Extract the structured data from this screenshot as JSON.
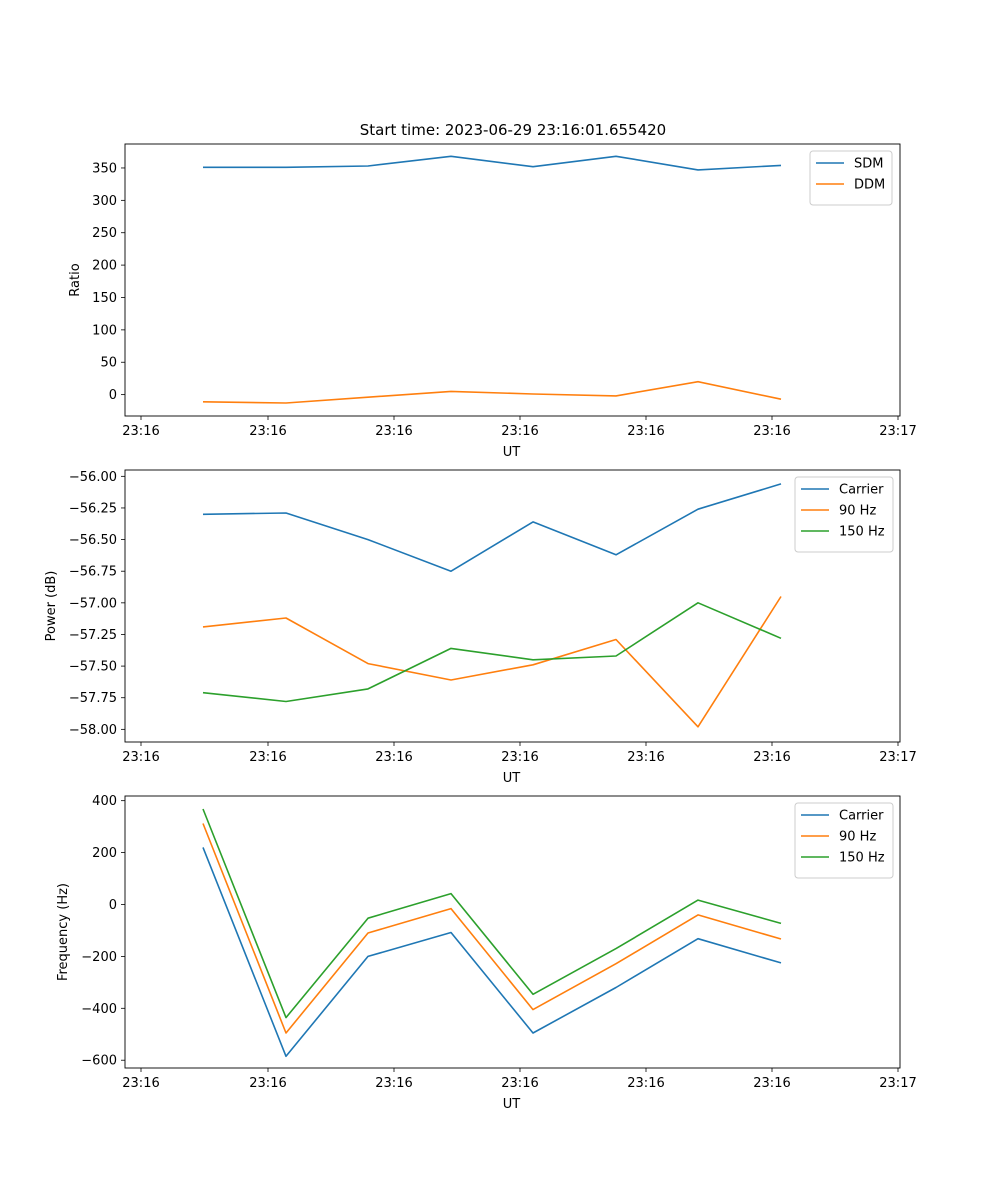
{
  "figure": {
    "title": "Start time: 2023-06-29 23:16:01.655420"
  },
  "chart_data": [
    {
      "type": "line",
      "title": "Start time: 2023-06-29 23:16:01.655420",
      "xlabel": "UT",
      "ylabel": "Ratio",
      "x_ticks": [
        "23:16",
        "23:16",
        "23:16",
        "23:16",
        "23:16",
        "23:16",
        "23:17"
      ],
      "y_ticks": [
        0,
        50,
        100,
        150,
        200,
        250,
        300,
        350
      ],
      "ylim": [
        -33,
        387
      ],
      "legend_position": "top-right",
      "series": [
        {
          "name": "SDM",
          "color": "#1f77b4",
          "values": [
            351,
            351,
            353,
            368,
            352,
            368,
            347,
            354
          ]
        },
        {
          "name": "DDM",
          "color": "#ff7f0e",
          "values": [
            -11,
            -13,
            -4,
            5,
            1,
            -2,
            20,
            -7
          ]
        }
      ]
    },
    {
      "type": "line",
      "title": "",
      "xlabel": "UT",
      "ylabel": "Power (dB)",
      "x_ticks": [
        "23:16",
        "23:16",
        "23:16",
        "23:16",
        "23:16",
        "23:16",
        "23:17"
      ],
      "y_ticks": [
        "−58.00",
        "−57.75",
        "−57.50",
        "−57.25",
        "−57.00",
        "−56.75",
        "−56.50",
        "−56.25",
        "−56.00"
      ],
      "y_tick_values": [
        -58.0,
        -57.75,
        -57.5,
        -57.25,
        -57.0,
        -56.75,
        -56.5,
        -56.25,
        -56.0
      ],
      "ylim": [
        -58.1,
        -55.95
      ],
      "legend_position": "top-right",
      "series": [
        {
          "name": "Carrier",
          "color": "#1f77b4",
          "values": [
            -56.3,
            -56.29,
            -56.5,
            -56.75,
            -56.36,
            -56.62,
            -56.26,
            -56.06
          ]
        },
        {
          "name": "90 Hz",
          "color": "#ff7f0e",
          "values": [
            -57.19,
            -57.12,
            -57.48,
            -57.61,
            -57.49,
            -57.29,
            -57.98,
            -56.95
          ]
        },
        {
          "name": "150 Hz",
          "color": "#2ca02c",
          "values": [
            -57.71,
            -57.78,
            -57.68,
            -57.36,
            -57.45,
            -57.42,
            -57.0,
            -57.28
          ]
        }
      ]
    },
    {
      "type": "line",
      "title": "",
      "xlabel": "UT",
      "ylabel": "Frequency (Hz)",
      "x_ticks": [
        "23:16",
        "23:16",
        "23:16",
        "23:16",
        "23:16",
        "23:16",
        "23:17"
      ],
      "y_ticks": [
        "−600",
        "−400",
        "−200",
        "0",
        "200",
        "400"
      ],
      "y_tick_values": [
        -600,
        -400,
        -200,
        0,
        200,
        400
      ],
      "ylim": [
        -630,
        418
      ],
      "legend_position": "top-right",
      "series": [
        {
          "name": "Carrier",
          "color": "#1f77b4",
          "values": [
            220,
            -585,
            -200,
            -108,
            -495,
            -320,
            -132,
            -225
          ]
        },
        {
          "name": "90 Hz",
          "color": "#ff7f0e",
          "values": [
            312,
            -495,
            -110,
            -16,
            -405,
            -228,
            -40,
            -133
          ]
        },
        {
          "name": "150 Hz",
          "color": "#2ca02c",
          "values": [
            368,
            -436,
            -53,
            42,
            -346,
            -170,
            17,
            -73
          ]
        }
      ]
    }
  ]
}
